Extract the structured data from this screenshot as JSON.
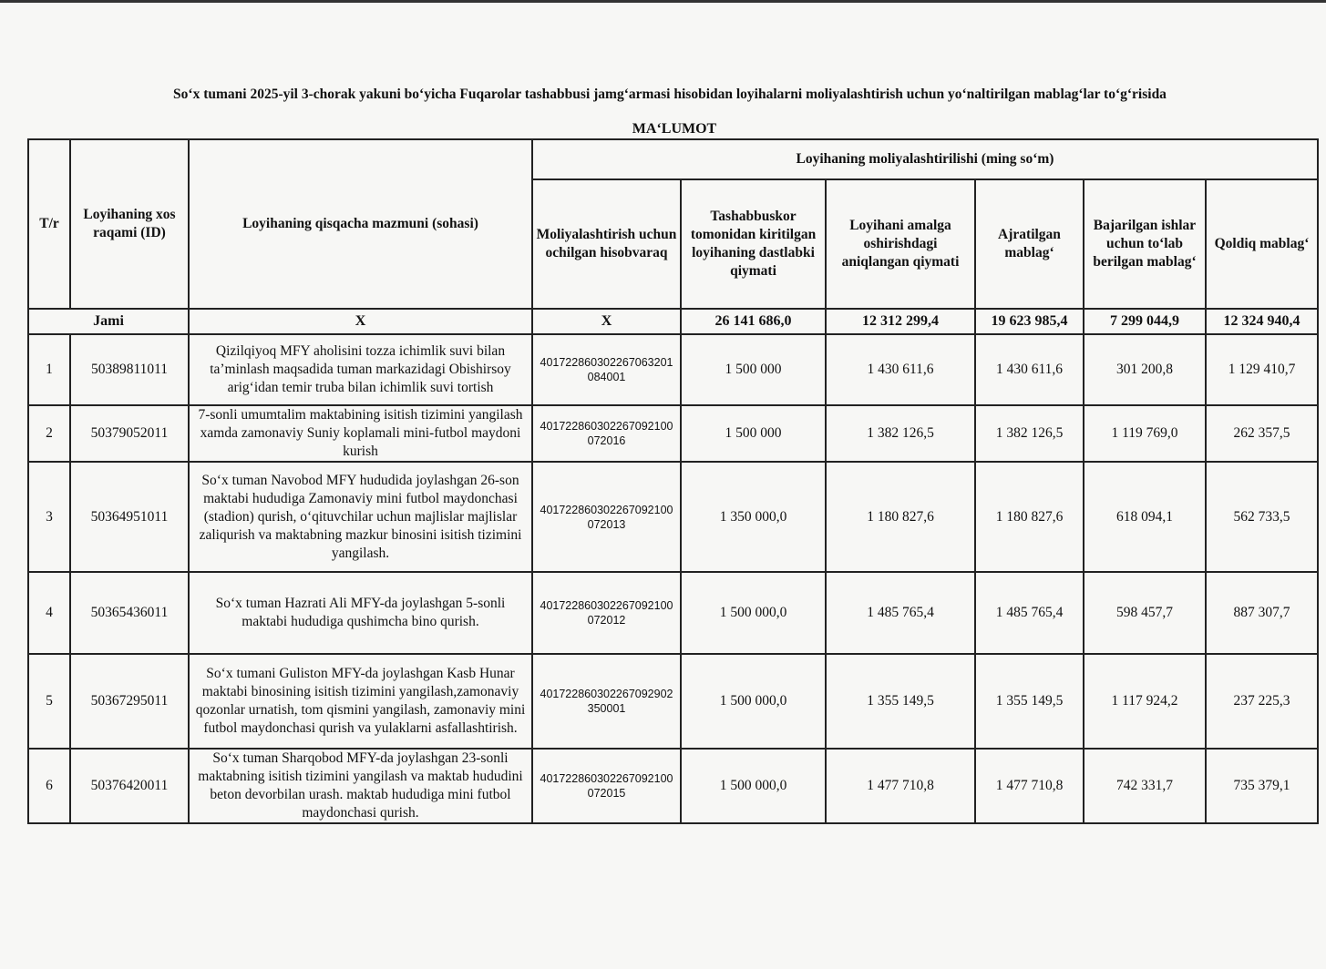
{
  "document": {
    "title": "So‘x tumani 2025-yil 3-chorak yakuni bo‘yicha Fuqarolar tashabbusi jamg‘armasi hisobidan loyihalarni moliyalashtirish uchun yo‘naltirilgan mablag‘lar to‘g‘risida",
    "subtitle": "MA‘LUMOT"
  },
  "table": {
    "headers": {
      "num": "T/r",
      "id": "Loyihaning xos raqami (ID)",
      "summary": "Loyihaning qisqacha mazmuni (sohasi)",
      "group": "Loyihaning moliyalashtirilishi (ming so‘m)",
      "account": "Moliyalashtirish uchun ochilgan hisobvaraq",
      "initial": "Tashabbuskor tomonidan kiritilgan loyihaning dastlabki qiymati",
      "actual": "Loyihani amalga oshirishdagi aniqlangan qiymati",
      "allocated": "Ajratilgan mablag‘",
      "paid": "Bajarilgan ishlar uchun to‘lab berilgan mablag‘",
      "remaining": "Qoldiq mablag‘"
    },
    "total": {
      "label": "Jami",
      "summary": "X",
      "account": "X",
      "initial": "26 141 686,0",
      "actual": "12 312 299,4",
      "allocated": "19 623 985,4",
      "paid": "7 299 044,9",
      "remaining": "12 324 940,4"
    },
    "rows": [
      {
        "num": "1",
        "id": "50389811011",
        "summary": "Qizilqiyoq MFY aholisini tozza ichimlik suvi bilan ta’minlash maqsadida tuman markazidagi  Obishirsoy arig‘idan  temir truba bilan ichimlik suvi tortish",
        "account": "401722860302267063201 084001",
        "initial": "1 500 000",
        "actual": "1 430 611,6",
        "allocated": "1 430 611,6",
        "paid": "301 200,8",
        "remaining": "1 129 410,7"
      },
      {
        "num": "2",
        "id": "50379052011",
        "summary": "7-sonli umumtalim maktabining isitish tizimini yangilash xamda zamonaviy Suniy koplamali mini-futbol maydoni kurish",
        "account": "401722860302267092100 072016",
        "initial": "1 500 000",
        "actual": "1 382 126,5",
        "allocated": "1 382 126,5",
        "paid": "1 119 769,0",
        "remaining": "262 357,5"
      },
      {
        "num": "3",
        "id": "50364951011",
        "summary": "So‘x tuman Navobod MFY hududida joylashgan 26-son maktabi hududiga Zamonaviy mini futbol maydonchasi (stadion) qurish, o‘qituvchilar uchun majlislar majlislar zaliqurish va maktabning mazkur binosini isitish tizimini yangilash.",
        "account": "401722860302267092100 072013",
        "initial": "1 350 000,0",
        "actual": "1 180 827,6",
        "allocated": "1 180 827,6",
        "paid": "618 094,1",
        "remaining": "562 733,5"
      },
      {
        "num": "4",
        "id": "50365436011",
        "summary": "So‘x tuman Hazrati Ali MFY-da joylashgan 5-sonli maktabi hududiga qushimcha bino qurish.",
        "account": "401722860302267092100 072012",
        "initial": "1 500 000,0",
        "actual": "1 485 765,4",
        "allocated": "1 485 765,4",
        "paid": "598 457,7",
        "remaining": "887 307,7"
      },
      {
        "num": "5",
        "id": "50367295011",
        "summary": "So‘x tumani Guliston MFY-da joylashgan Kasb Hunar maktabi binosining isitish tizimini yangilash,zamonaviy qozonlar urnatish, tom qismini yangilash,  zamonaviy mini futbol maydonchasi qurish va  yulaklarni asfallashtirish.",
        "account": "401722860302267092902 350001",
        "initial": "1 500 000,0",
        "actual": "1 355 149,5",
        "allocated": "1 355 149,5",
        "paid": "1 117 924,2",
        "remaining": "237 225,3"
      },
      {
        "num": "6",
        "id": "50376420011",
        "summary": "So‘x tuman Sharqobod MFY-da joylashgan 23-sonli maktabning isitish tizimini yangilash va maktab hududini beton devorbilan urash. maktab hududiga mini futbol maydonchasi qurish.",
        "account": "401722860302267092100 072015",
        "initial": "1 500 000,0",
        "actual": "1 477 710,8",
        "allocated": "1 477 710,8",
        "paid": "742 331,7",
        "remaining": "735 379,1"
      }
    ]
  }
}
